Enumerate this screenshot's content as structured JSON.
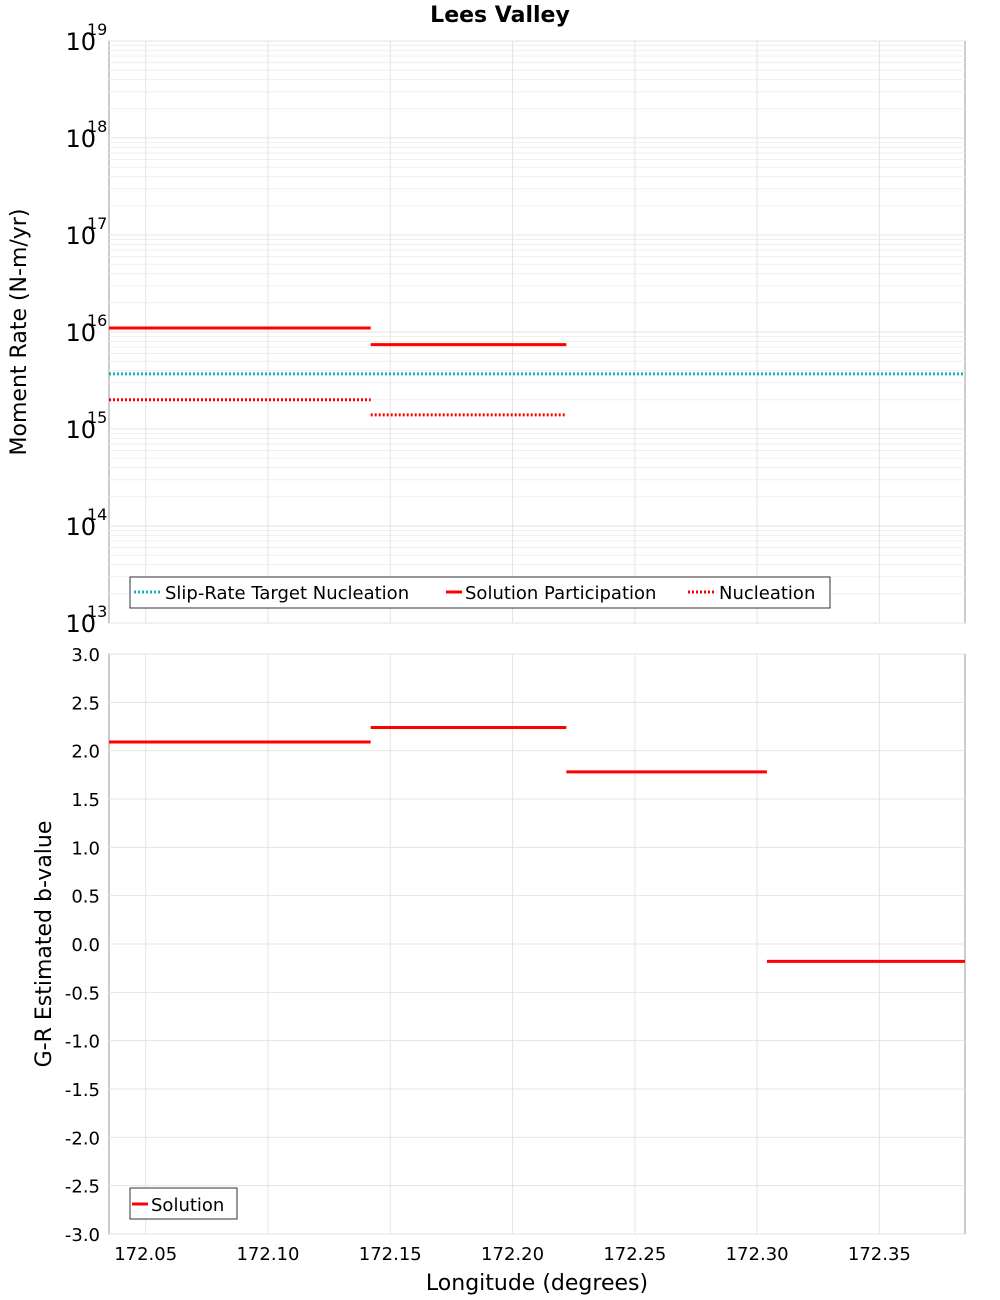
{
  "title": "Lees Valley",
  "chart_data": [
    {
      "type": "line",
      "panel": "top",
      "ylabel": "Moment Rate (N-m/yr)",
      "xlabel": "",
      "yscale": "log",
      "ylim": [
        10000000000000.0,
        1e+19
      ],
      "xlim": [
        172.035,
        172.385
      ],
      "x_ticks": [
        "172.05",
        "172.10",
        "172.15",
        "172.20",
        "172.25",
        "172.30",
        "172.35"
      ],
      "y_ticks": [
        {
          "base": "10",
          "exp": "13"
        },
        {
          "base": "10",
          "exp": "14"
        },
        {
          "base": "10",
          "exp": "15"
        },
        {
          "base": "10",
          "exp": "16"
        },
        {
          "base": "10",
          "exp": "17"
        },
        {
          "base": "10",
          "exp": "18"
        },
        {
          "base": "10",
          "exp": "19"
        }
      ],
      "grid": true,
      "legend_position": "bottom-left",
      "series": [
        {
          "name": "Slip-Rate Target Nucleation",
          "color": "#17b2b8",
          "style": "dotted",
          "segments": [
            [
              172.035,
              172.385,
              3700000000000000.0
            ]
          ]
        },
        {
          "name": "Solution Participation",
          "color": "#ff0000",
          "style": "solid",
          "segments": [
            [
              172.035,
              172.142,
              1.1e+16
            ],
            [
              172.142,
              172.222,
              7400000000000000.0
            ]
          ]
        },
        {
          "name": "Nucleation",
          "color": "#ff0000",
          "style": "dotted",
          "segments": [
            [
              172.035,
              172.142,
              2000000000000000.0
            ],
            [
              172.142,
              172.222,
              1400000000000000.0
            ]
          ]
        }
      ]
    },
    {
      "type": "line",
      "panel": "bottom",
      "ylabel": "G-R Estimated b-value",
      "xlabel": "Longitude (degrees)",
      "yscale": "linear",
      "ylim": [
        -3.0,
        3.0
      ],
      "xlim": [
        172.035,
        172.385
      ],
      "x_ticks": [
        "172.05",
        "172.10",
        "172.15",
        "172.20",
        "172.25",
        "172.30",
        "172.35"
      ],
      "y_ticks": [
        "-3.0",
        "-2.5",
        "-2.0",
        "-1.5",
        "-1.0",
        "-0.5",
        "0.0",
        "0.5",
        "1.0",
        "1.5",
        "2.0",
        "2.5",
        "3.0"
      ],
      "grid": true,
      "legend_position": "bottom-left",
      "series": [
        {
          "name": "Solution",
          "color": "#ff0000",
          "style": "solid",
          "segments": [
            [
              172.035,
              172.142,
              2.09
            ],
            [
              172.142,
              172.222,
              2.24
            ],
            [
              172.222,
              172.304,
              1.78
            ],
            [
              172.304,
              172.385,
              -0.18
            ]
          ]
        }
      ]
    }
  ]
}
